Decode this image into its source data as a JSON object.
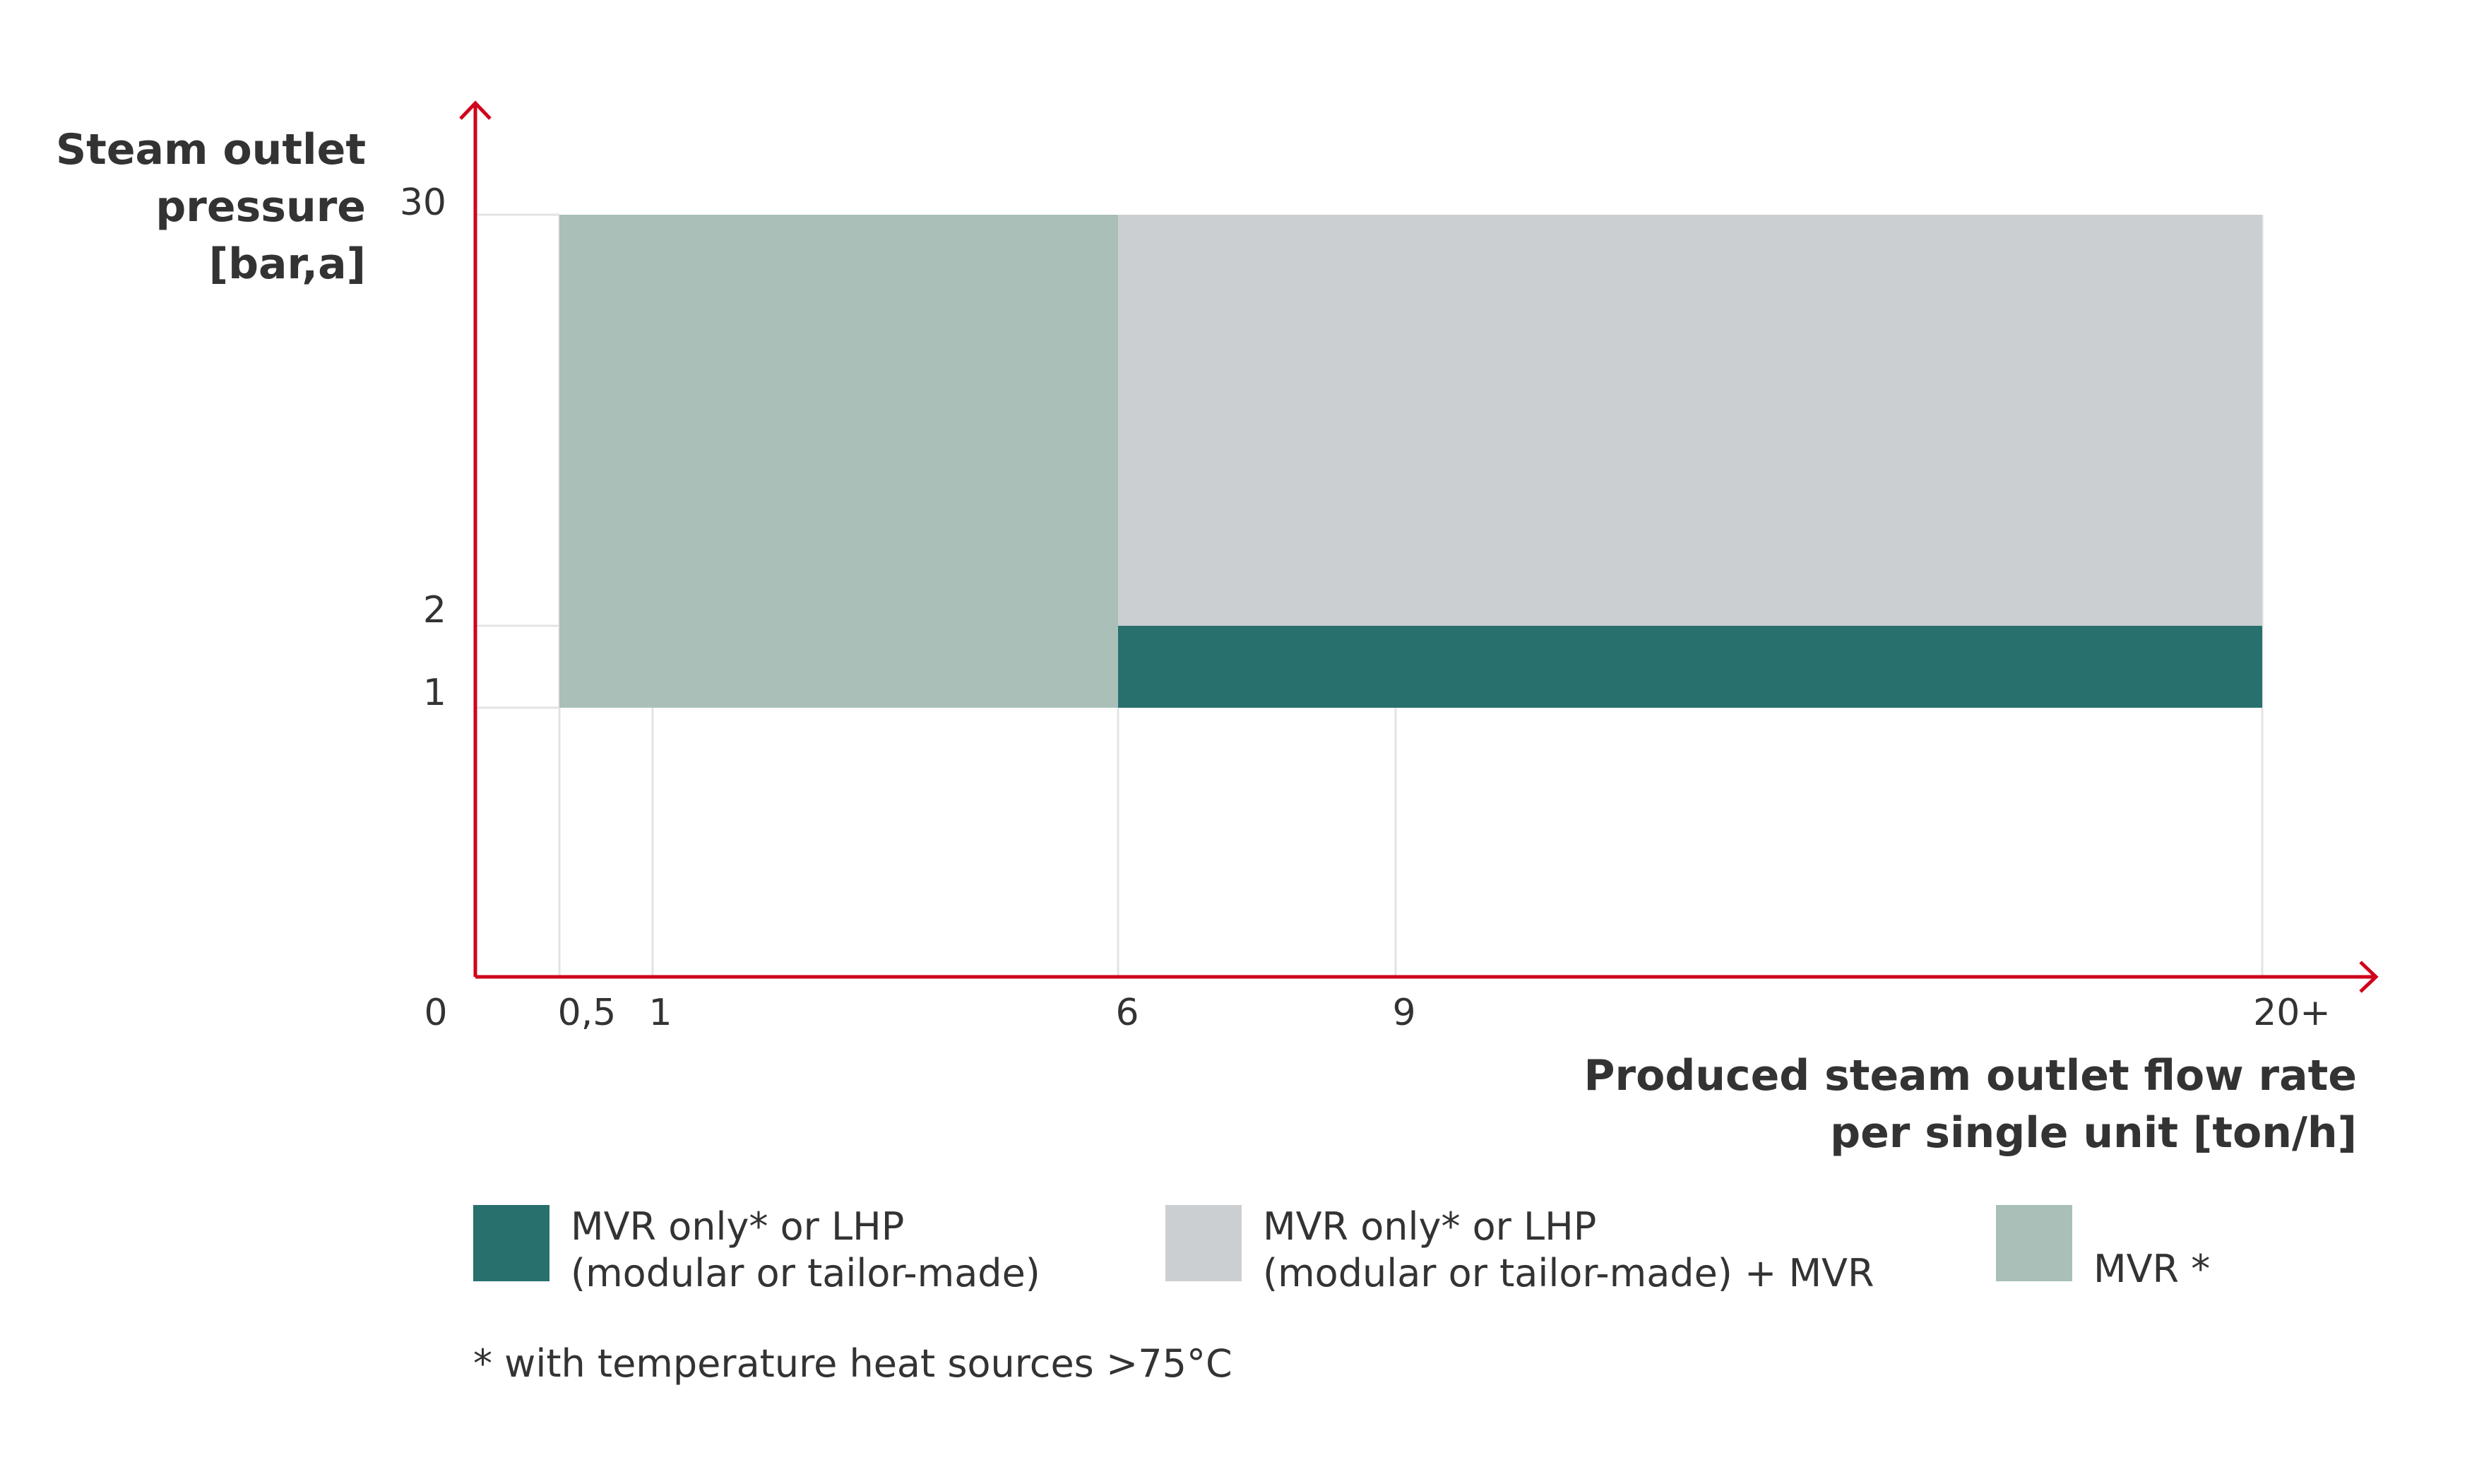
{
  "colors": {
    "axis": "#d0021b",
    "grid": "#e3e3e3",
    "text": "#333333",
    "dark_teal": "#27706d",
    "light_grey": "#cbcfd2",
    "sage": "#a9bfb7"
  },
  "chart_data": {
    "type": "area",
    "xlabel_lines": [
      "Produced steam outlet flow rate",
      "per single unit [ton/h]"
    ],
    "ylabel_lines": [
      "Steam outlet",
      "pressure",
      "[bar,a]"
    ],
    "x_ticks": [
      "0",
      "0,5",
      "1",
      "6",
      "9",
      "20+"
    ],
    "y_ticks": [
      "30",
      "2",
      "1"
    ],
    "regions": [
      {
        "name": "MVR *",
        "x": [
          "0,5",
          "6"
        ],
        "y": [
          "1",
          "30"
        ],
        "color": "#a9bfb7"
      },
      {
        "name": "MVR only* or LHP (modular or tailor-made) + MVR",
        "x": [
          "6",
          "20+"
        ],
        "y": [
          "2",
          "30"
        ],
        "color": "#cbcfd2"
      },
      {
        "name": "MVR only* or LHP (modular or tailor-made)",
        "x": [
          "6",
          "20+"
        ],
        "y": [
          "1",
          "2"
        ],
        "color": "#27706d"
      }
    ],
    "legend": [
      {
        "lines": [
          "MVR only* or LHP",
          "(modular or tailor-made)"
        ],
        "color": "#27706d"
      },
      {
        "lines": [
          "MVR only* or LHP",
          "(modular or tailor-made) + MVR"
        ],
        "color": "#cbcfd2"
      },
      {
        "lines": [
          "",
          "MVR *"
        ],
        "color": "#a9bfb7"
      }
    ],
    "footnote": "* with temperature heat sources >75°C",
    "legend_position": "bottom",
    "grid": true
  }
}
